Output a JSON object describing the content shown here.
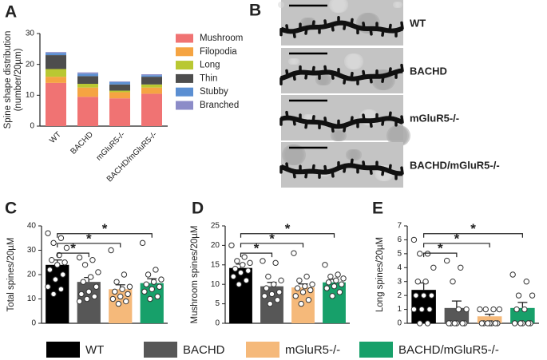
{
  "panel_labels": [
    "A",
    "B",
    "C",
    "D",
    "E"
  ],
  "chart_data": [
    {
      "type": "stacked_bar",
      "ylabel": [
        "Spine shape distribution",
        "(number/20µm)"
      ],
      "categories": [
        "WT",
        "BACHD",
        "mGluR5-/-",
        "BACHD/mGluR5-/-"
      ],
      "series": [
        {
          "name": "Mushroom",
          "color": "#f07373",
          "values": [
            14,
            9.5,
            9,
            10.5
          ]
        },
        {
          "name": "Filopodia",
          "color": "#f5a442",
          "values": [
            2,
            3,
            2,
            2
          ]
        },
        {
          "name": "Long",
          "color": "#b9c832",
          "values": [
            2.5,
            1.2,
            0.5,
            1
          ]
        },
        {
          "name": "Thin",
          "color": "#4d4d4d",
          "values": [
            4.5,
            2.5,
            2,
            2.5
          ]
        },
        {
          "name": "Stubby",
          "color": "#5b8fd2",
          "values": [
            0.7,
            0.8,
            0.8,
            0.5
          ]
        },
        {
          "name": "Branched",
          "color": "#8c8cc8",
          "values": [
            0.3,
            0.4,
            0.2,
            0.3
          ]
        }
      ],
      "ylim": [
        0,
        30
      ],
      "yticks": [
        0,
        10,
        20,
        30
      ]
    },
    {
      "type": "bar",
      "ylabel": "Total spines/20µM",
      "colors": [
        "#000000",
        "#575757",
        "#f5b97a",
        "#17a06a"
      ],
      "values": [
        24,
        17,
        14,
        16.5
      ],
      "errors": [
        2,
        1.8,
        1.8,
        1.8
      ],
      "points": [
        [
          37,
          35,
          33,
          31,
          28,
          26,
          25,
          24,
          22,
          20,
          18,
          15,
          14,
          12
        ],
        [
          27,
          26,
          24,
          21,
          19,
          17,
          15,
          13,
          12,
          11,
          10,
          9
        ],
        [
          30,
          20,
          17,
          15,
          14,
          13,
          12,
          11,
          10,
          9,
          8
        ],
        [
          33,
          22,
          20,
          18,
          17,
          16,
          15,
          14,
          13,
          11,
          10
        ]
      ],
      "ylim": [
        0,
        40
      ],
      "yticks": [
        0,
        10,
        20,
        30,
        40
      ],
      "significance": [
        {
          "from": 0,
          "to": 1,
          "label": "*"
        },
        {
          "from": 0,
          "to": 2,
          "label": "*"
        },
        {
          "from": 0,
          "to": 3,
          "label": "*"
        }
      ]
    },
    {
      "type": "bar",
      "ylabel": "Mushroom spines/20µM",
      "colors": [
        "#000000",
        "#575757",
        "#f5b97a",
        "#17a06a"
      ],
      "values": [
        14.2,
        9.5,
        9.2,
        10.5
      ],
      "errors": [
        1,
        1,
        0.9,
        0.8
      ],
      "points": [
        [
          20,
          17,
          16,
          15.5,
          15,
          14,
          13.5,
          13,
          12,
          11,
          10
        ],
        [
          16,
          15.5,
          12,
          11,
          10,
          9,
          8,
          7.5,
          7,
          6,
          5
        ],
        [
          18,
          12,
          11,
          10,
          9.5,
          9,
          8.5,
          8,
          7,
          6,
          5
        ],
        [
          15,
          12.5,
          12,
          11.5,
          11,
          10.5,
          10,
          9.5,
          9,
          8,
          7
        ]
      ],
      "ylim": [
        0,
        25
      ],
      "yticks": [
        0,
        5,
        10,
        15,
        20,
        25
      ],
      "significance": [
        {
          "from": 0,
          "to": 1,
          "label": "*"
        },
        {
          "from": 0,
          "to": 2,
          "label": "*"
        },
        {
          "from": 0,
          "to": 3,
          "label": "*"
        }
      ]
    },
    {
      "type": "bar",
      "ylabel": "Long spines/20µM",
      "colors": [
        "#000000",
        "#575757",
        "#f5b97a",
        "#17a06a"
      ],
      "values": [
        2.4,
        1.1,
        0.5,
        1.1
      ],
      "errors": [
        0.5,
        0.5,
        0.15,
        0.4
      ],
      "points": [
        [
          6,
          5,
          5,
          4,
          3,
          3,
          2,
          2,
          2,
          1,
          1,
          1,
          0,
          0
        ],
        [
          4.5,
          4,
          3,
          1,
          1,
          0,
          0,
          0,
          0,
          0,
          0
        ],
        [
          1,
          1,
          1,
          1,
          0,
          0,
          0,
          0,
          0,
          0,
          0
        ],
        [
          3.5,
          3,
          2,
          2,
          1,
          1,
          0,
          0,
          0,
          0,
          0
        ]
      ],
      "ylim": [
        0,
        7
      ],
      "yticks": [
        0,
        1,
        2,
        3,
        4,
        5,
        6,
        7
      ],
      "significance": [
        {
          "from": 0,
          "to": 1,
          "label": "*"
        },
        {
          "from": 0,
          "to": 2,
          "label": "*"
        },
        {
          "from": 0,
          "to": 3,
          "label": "*"
        }
      ]
    }
  ],
  "image_panel": {
    "labels": [
      "WT",
      "BACHD",
      "mGluR5-/-",
      "BACHD/mGluR5-/-"
    ]
  },
  "legend": {
    "names": [
      "WT",
      "BACHD",
      "mGluR5-/-",
      "BACHD/mGluR5-/-"
    ],
    "colors": [
      "#000000",
      "#575757",
      "#f5b97a",
      "#17a06a"
    ]
  }
}
